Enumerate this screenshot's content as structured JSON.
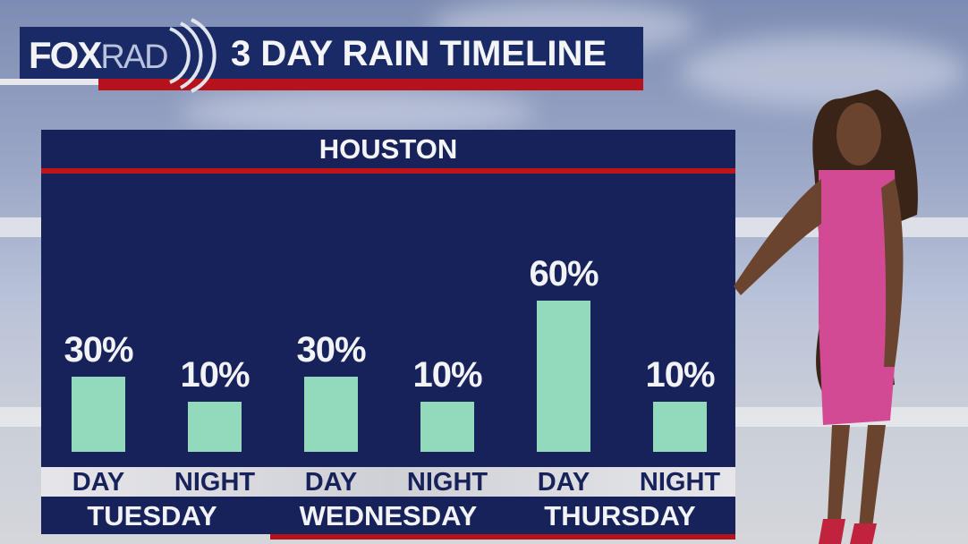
{
  "header": {
    "logo_text": "FOXRAD",
    "title": "3 DAY RAIN TIMELINE"
  },
  "colors": {
    "panel": "#18225a",
    "bar": "#93d9bb",
    "accent_red": "#b5121b"
  },
  "chart_data": {
    "type": "bar",
    "title": "HOUSTON",
    "categories": [
      "DAY",
      "NIGHT",
      "DAY",
      "NIGHT",
      "DAY",
      "NIGHT"
    ],
    "groups": [
      "TUESDAY",
      "WEDNESDAY",
      "THURSDAY"
    ],
    "values": [
      30,
      10,
      30,
      10,
      60,
      10
    ],
    "value_labels": [
      "30%",
      "10%",
      "30%",
      "10%",
      "60%",
      "10%"
    ],
    "unit": "%"
  }
}
